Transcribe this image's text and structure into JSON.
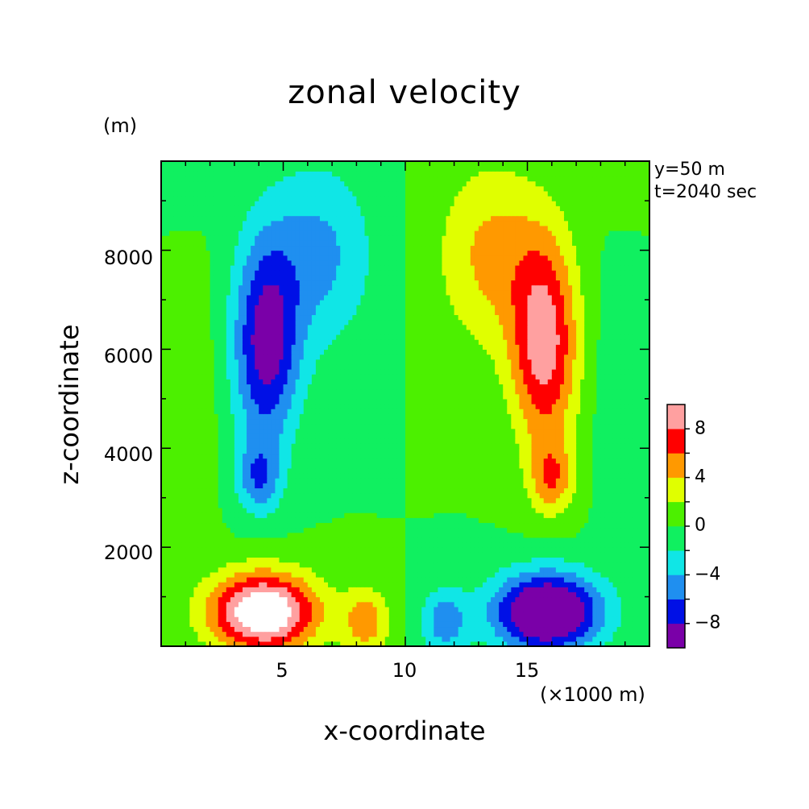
{
  "chart_data": {
    "type": "heatmap",
    "title": "zonal velocity",
    "xlabel": "x-coordinate",
    "ylabel": "z-coordinate",
    "x_unit_label": "(×1000 m)",
    "y_unit_label": "(m)",
    "annotations": [
      "y=50 m",
      "t=2040 sec"
    ],
    "xlim": [
      0,
      20
    ],
    "ylim": [
      0,
      9800
    ],
    "x_ticks": [
      5,
      10,
      15
    ],
    "x_tick_labels": [
      "5",
      "10",
      "15"
    ],
    "y_ticks": [
      2000,
      4000,
      6000,
      8000
    ],
    "y_tick_labels": [
      "2000",
      "4000",
      "6000",
      "8000"
    ],
    "colorbar": {
      "levels": [
        -10,
        -8,
        -6,
        -4,
        -2,
        0,
        2,
        4,
        6,
        8,
        10
      ],
      "tick_labels": [
        "8",
        "4",
        "0",
        "−4",
        "−8"
      ],
      "tick_values": [
        8,
        4,
        0,
        -4,
        -8
      ],
      "colors": [
        "#7a00a8",
        "#0010e6",
        "#1f8ff0",
        "#10e6e6",
        "#10f060",
        "#4cf000",
        "#e0ff00",
        "#ff9900",
        "#ff0000",
        "#ffa0a0"
      ],
      "above_max_color": "#ffffff"
    },
    "features": [
      {
        "name": "negative jet core",
        "x": 4.0,
        "z": 6000,
        "value_range": [
          -10,
          -6
        ]
      },
      {
        "name": "positive jet core",
        "x": 16.0,
        "z": 6000,
        "value_range": [
          6,
          10
        ]
      },
      {
        "name": "low-level outflow left",
        "x": 4.0,
        "z": 800,
        "value_range": [
          8,
          10
        ]
      },
      {
        "name": "low-level outflow right",
        "x": 16.0,
        "z": 800,
        "value_range": [
          -10,
          -8
        ]
      }
    ],
    "grid": false,
    "legend": "colorbar right"
  }
}
